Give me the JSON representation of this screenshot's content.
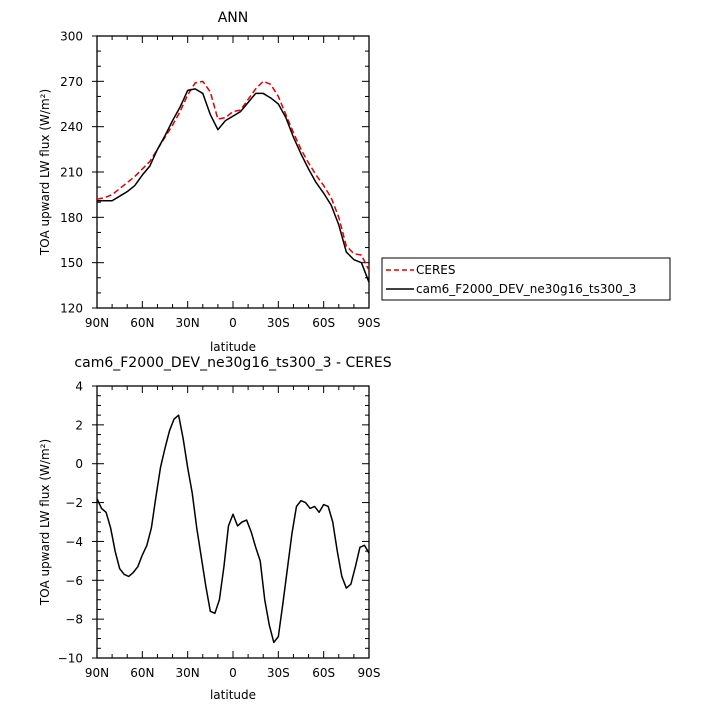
{
  "chart_data": [
    {
      "type": "line",
      "title": "ANN",
      "xlabel": "latitude",
      "ylabel": "TOA upward LW flux (W/m²)",
      "xlim": [
        90,
        -90
      ],
      "ylim": [
        120,
        300
      ],
      "xtick_values": [
        90,
        60,
        30,
        0,
        -30,
        -60,
        -90
      ],
      "xtick_labels": [
        "90N",
        "60N",
        "30N",
        "0",
        "30S",
        "60S",
        "90S"
      ],
      "yticks": [
        120,
        150,
        180,
        210,
        240,
        270,
        300
      ],
      "grid": false,
      "legend_position": "right-bottom outside",
      "series": [
        {
          "name": "CERES",
          "color": "#e00000",
          "style": "dashed",
          "x": [
            90,
            85,
            80,
            75,
            70,
            65,
            60,
            55,
            50,
            45,
            40,
            35,
            30,
            25,
            20,
            15,
            10,
            5,
            0,
            -5,
            -10,
            -15,
            -20,
            -25,
            -30,
            -35,
            -40,
            -45,
            -50,
            -55,
            -60,
            -65,
            -70,
            -75,
            -80,
            -85,
            -90
          ],
          "y": [
            192,
            193,
            195,
            199,
            203,
            207,
            212,
            217,
            225,
            233,
            241,
            250,
            261,
            269,
            270,
            263,
            245,
            246,
            250,
            251,
            258,
            265,
            270,
            268,
            260,
            248,
            236,
            225,
            216,
            208,
            201,
            193,
            180,
            161,
            156,
            155,
            145
          ]
        },
        {
          "name": "cam6_F2000_DEV_ne30g16_ts300_3",
          "color": "#000000",
          "style": "solid",
          "x": [
            90,
            85,
            80,
            75,
            70,
            65,
            60,
            55,
            50,
            45,
            40,
            35,
            30,
            25,
            20,
            15,
            10,
            5,
            0,
            -5,
            -10,
            -15,
            -20,
            -25,
            -30,
            -35,
            -40,
            -45,
            -50,
            -55,
            -60,
            -65,
            -70,
            -75,
            -80,
            -85,
            -90
          ],
          "y": [
            191,
            191,
            191,
            194,
            197,
            201,
            208,
            214,
            225,
            234,
            244,
            253,
            264,
            265,
            262,
            248,
            238,
            244,
            247,
            250,
            256,
            262,
            262,
            259,
            255,
            246,
            233,
            222,
            212,
            203,
            196,
            188,
            175,
            157,
            152,
            150,
            137
          ]
        }
      ]
    },
    {
      "type": "line",
      "title": "cam6_F2000_DEV_ne30g16_ts300_3 - CERES",
      "xlabel": "latitude",
      "ylabel": "TOA upward LW flux (W/m²)",
      "xlim": [
        90,
        -90
      ],
      "ylim": [
        -10,
        4
      ],
      "xtick_values": [
        90,
        60,
        30,
        0,
        -30,
        -60,
        -90
      ],
      "xtick_labels": [
        "90N",
        "60N",
        "30N",
        "0",
        "30S",
        "60S",
        "90S"
      ],
      "yticks": [
        -10,
        -8,
        -6,
        -4,
        -2,
        0,
        2,
        4
      ],
      "grid": false,
      "series": [
        {
          "name": "",
          "color": "#000000",
          "style": "solid",
          "x": [
            90,
            87,
            84,
            81,
            78,
            75,
            72,
            69,
            66,
            63,
            60,
            57,
            54,
            51,
            48,
            45,
            42,
            39,
            36,
            33,
            30,
            27,
            24,
            21,
            18,
            15,
            12,
            9,
            6,
            3,
            0,
            -3,
            -6,
            -9,
            -12,
            -15,
            -18,
            -21,
            -24,
            -27,
            -30,
            -33,
            -36,
            -39,
            -42,
            -45,
            -48,
            -51,
            -54,
            -57,
            -60,
            -63,
            -66,
            -69,
            -72,
            -75,
            -78,
            -81,
            -84,
            -87,
            -90
          ],
          "y": [
            -1.8,
            -2.3,
            -2.5,
            -3.3,
            -4.5,
            -5.4,
            -5.7,
            -5.8,
            -5.6,
            -5.3,
            -4.7,
            -4.2,
            -3.3,
            -1.7,
            -0.2,
            0.8,
            1.7,
            2.3,
            2.5,
            1.3,
            -0.2,
            -1.5,
            -3.3,
            -4.8,
            -6.3,
            -7.6,
            -7.7,
            -7.0,
            -5.3,
            -3.2,
            -2.6,
            -3.2,
            -3.0,
            -2.9,
            -3.5,
            -4.3,
            -5.0,
            -7.0,
            -8.3,
            -9.2,
            -8.9,
            -7.2,
            -5.4,
            -3.6,
            -2.2,
            -1.9,
            -2.0,
            -2.3,
            -2.2,
            -2.5,
            -2.1,
            -2.2,
            -3.0,
            -4.5,
            -5.8,
            -6.4,
            -6.2,
            -5.3,
            -4.3,
            -4.2,
            -4.6
          ]
        }
      ]
    }
  ]
}
